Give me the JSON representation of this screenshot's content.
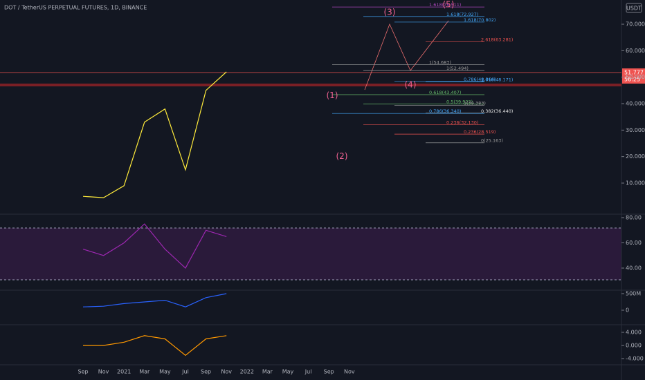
{
  "header": {
    "title": "DOT / TetherUS PERPETUAL FUTURES, 1D, BINANCE",
    "currency": "USDT",
    "last_price": "51.777",
    "countdown": "56:25"
  },
  "time_axis": {
    "labels": [
      "Sep",
      "Nov",
      "2021",
      "Mar",
      "May",
      "Jul",
      "Sep",
      "Nov",
      "2022",
      "Mar",
      "May",
      "Jul",
      "Sep",
      "Nov"
    ]
  },
  "price_pane": {
    "yticks": [
      {
        "value": 10,
        "label": "10.000"
      },
      {
        "value": 20,
        "label": "20.000"
      },
      {
        "value": 30,
        "label": "30.000"
      },
      {
        "value": 40,
        "label": "40.000"
      },
      {
        "value": 50,
        "label": "50.000"
      },
      {
        "value": 60,
        "label": "60.000"
      },
      {
        "value": 70,
        "label": "70.000"
      }
    ],
    "close": [
      5,
      4.5,
      9,
      33,
      38,
      15,
      45,
      52,
      null,
      null,
      null,
      null,
      null,
      null
    ],
    "fib_levels": [
      {
        "label": "1.618(76.511)",
        "price": 76.5,
        "color": "#ab47bc"
      },
      {
        "label": "1.618(72.927)",
        "price": 72.9,
        "color": "#42a5f5"
      },
      {
        "label": "1.618(70.802)",
        "price": 70.8,
        "color": "#42a5f5"
      },
      {
        "label": "2.618(63.281)",
        "price": 63.3,
        "color": "#ef5350"
      },
      {
        "label": "1(54.683)",
        "price": 54.7,
        "color": "#9e9e9e"
      },
      {
        "label": "1(52.494)",
        "price": 52.5,
        "color": "#9e9e9e"
      },
      {
        "label": "0.786(48.366)",
        "price": 48.4,
        "color": "#42a5f5"
      },
      {
        "label": "1.618(48.171)",
        "price": 48.2,
        "color": "#42a5f5"
      },
      {
        "label": "0.618(43.407)",
        "price": 43.4,
        "color": "#66bb6a"
      },
      {
        "label": "0.5(39.922)",
        "price": 39.9,
        "color": "#66bb6a"
      },
      {
        "label": "1(39.383)",
        "price": 39.4,
        "color": "#9e9e9e"
      },
      {
        "label": "0.382(36.440)",
        "price": 36.4,
        "color": "#e0e0e0"
      },
      {
        "label": "0.786(36.340)",
        "price": 36.3,
        "color": "#42a5f5"
      },
      {
        "label": "0.236(32.130)",
        "price": 32.1,
        "color": "#ef5350"
      },
      {
        "label": "0.236(28.519)",
        "price": 28.5,
        "color": "#ef5350"
      },
      {
        "label": "0(25.163)",
        "price": 25.2,
        "color": "#9e9e9e"
      }
    ],
    "waves": [
      {
        "label": "(1)",
        "price": 43
      },
      {
        "label": "(2)",
        "price": 20
      },
      {
        "label": "(3)",
        "price": 74.5
      },
      {
        "label": "(4)",
        "price": 47
      },
      {
        "label": "(5)",
        "price": 77.3
      }
    ]
  },
  "rsi_pane": {
    "yticks": [
      {
        "value": 40,
        "label": "40.00"
      },
      {
        "value": 60,
        "label": "60.00"
      },
      {
        "value": 80,
        "label": "80.00"
      }
    ],
    "values": [
      55,
      50,
      60,
      75,
      55,
      40,
      70,
      65,
      null,
      null,
      null,
      null,
      null,
      null
    ]
  },
  "obv_pane": {
    "yticks": [
      0,
      {
        "value": 500,
        "label": "500M"
      }
    ],
    "values": [
      100,
      120,
      200,
      250,
      300,
      100,
      380,
      500,
      null,
      null,
      null,
      null,
      null,
      null
    ]
  },
  "macd_pane": {
    "yticks": [
      {
        "value": -4,
        "label": "-4.000"
      },
      {
        "value": 0,
        "label": "0.000"
      },
      {
        "value": 4,
        "label": "4.000"
      }
    ],
    "values": [
      0,
      0,
      1,
      3,
      2,
      -3,
      2,
      3,
      null,
      null,
      null,
      null,
      null,
      null
    ]
  }
}
